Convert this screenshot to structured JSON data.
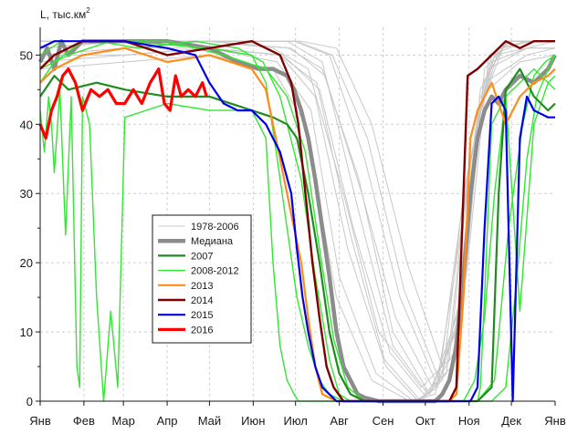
{
  "chart_data": {
    "type": "line",
    "title": "",
    "ylabel_main": "L, тыс.км",
    "ylabel_sup": "2",
    "xlabel": "",
    "ylim": [
      0,
      54
    ],
    "yticks": [
      0,
      10,
      20,
      30,
      40,
      50
    ],
    "xlim": [
      0,
      365
    ],
    "months": [
      "Янв",
      "Фев",
      "Мар",
      "Апр",
      "Май",
      "Июн",
      "Июл",
      "Авг",
      "Сен",
      "Окт",
      "Ноя",
      "Дек",
      "Янв"
    ],
    "month_days": [
      0,
      31,
      59,
      90,
      120,
      151,
      181,
      212,
      243,
      273,
      304,
      334,
      365
    ],
    "grid": true,
    "legend_position": "center-left",
    "colors": {
      "historical": "#c8c8c8",
      "median": "#8c8c8c",
      "y2007": "#1e8c1e",
      "y2008_2012": "#33e633",
      "y2013": "#ff8c1a",
      "y2014": "#7f0000",
      "y2015": "#0000e6",
      "y2016": "#ff0000"
    },
    "legend": [
      {
        "key": "historical",
        "label": "1978-2006"
      },
      {
        "key": "median",
        "label": "Медиана"
      },
      {
        "key": "y2007",
        "label": "2007"
      },
      {
        "key": "y2008_2012",
        "label": "2008-2012"
      },
      {
        "key": "y2013",
        "label": "2013"
      },
      {
        "key": "y2014",
        "label": "2014"
      },
      {
        "key": "y2015",
        "label": "2015"
      },
      {
        "key": "y2016",
        "label": "2016"
      }
    ],
    "historical_series": [
      {
        "x": [
          0,
          60,
          120,
          165,
          190,
          215,
          240,
          270,
          290,
          305,
          320,
          345,
          365
        ],
        "y": [
          52,
          52,
          52,
          51,
          48,
          30,
          10,
          2,
          6,
          35,
          50,
          52,
          52
        ]
      },
      {
        "x": [
          0,
          60,
          120,
          175,
          200,
          225,
          250,
          275,
          295,
          310,
          325,
          345,
          365
        ],
        "y": [
          50,
          51,
          52,
          52,
          49,
          28,
          8,
          1,
          10,
          40,
          51,
          52,
          52
        ]
      },
      {
        "x": [
          0,
          60,
          120,
          170,
          195,
          218,
          245,
          268,
          285,
          300,
          318,
          345,
          365
        ],
        "y": [
          52,
          52,
          51,
          50,
          44,
          22,
          5,
          0,
          3,
          30,
          48,
          51,
          52
        ]
      },
      {
        "x": [
          0,
          60,
          120,
          180,
          205,
          230,
          255,
          280,
          298,
          312,
          330,
          350,
          365
        ],
        "y": [
          51,
          52,
          52,
          52,
          50,
          35,
          15,
          3,
          12,
          45,
          52,
          52,
          52
        ]
      },
      {
        "x": [
          0,
          60,
          120,
          168,
          192,
          212,
          238,
          265,
          282,
          297,
          315,
          345,
          365
        ],
        "y": [
          49,
          50,
          51,
          49,
          42,
          18,
          4,
          0,
          2,
          25,
          46,
          50,
          51
        ]
      },
      {
        "x": [
          0,
          60,
          120,
          178,
          202,
          228,
          252,
          278,
          300,
          315,
          332,
          350,
          365
        ],
        "y": [
          52,
          52,
          52,
          51,
          47,
          30,
          12,
          2,
          15,
          48,
          52,
          52,
          52
        ]
      },
      {
        "x": [
          0,
          60,
          120,
          172,
          198,
          222,
          248,
          272,
          292,
          308,
          322,
          345,
          365
        ],
        "y": [
          50,
          51,
          51,
          50,
          45,
          25,
          7,
          1,
          5,
          38,
          50,
          51,
          51
        ]
      },
      {
        "x": [
          0,
          60,
          120,
          185,
          210,
          235,
          260,
          285,
          302,
          318,
          335,
          352,
          365
        ],
        "y": [
          52,
          52,
          52,
          52,
          51,
          40,
          20,
          5,
          18,
          50,
          52,
          52,
          52
        ]
      },
      {
        "x": [
          0,
          60,
          120,
          165,
          188,
          210,
          235,
          262,
          280,
          295,
          312,
          340,
          365
        ],
        "y": [
          48,
          49,
          50,
          48,
          40,
          15,
          3,
          0,
          1,
          20,
          44,
          49,
          50
        ]
      },
      {
        "x": [
          0,
          60,
          120,
          176,
          200,
          226,
          250,
          276,
          296,
          311,
          328,
          348,
          365
        ],
        "y": [
          51,
          52,
          52,
          51,
          48,
          32,
          10,
          1,
          8,
          42,
          51,
          52,
          52
        ]
      },
      {
        "x": [
          0,
          60,
          120,
          170,
          196,
          220,
          244,
          270,
          288,
          303,
          320,
          345,
          365
        ],
        "y": [
          50,
          50,
          51,
          50,
          46,
          24,
          6,
          0,
          4,
          33,
          49,
          51,
          51
        ]
      },
      {
        "x": [
          0,
          60,
          120,
          182,
          207,
          232,
          258,
          283,
          299,
          314,
          331,
          350,
          365
        ],
        "y": [
          52,
          52,
          52,
          52,
          50,
          38,
          16,
          3,
          14,
          46,
          52,
          52,
          52
        ]
      }
    ],
    "series": [
      {
        "key": "median",
        "width": 4.5,
        "x": [
          0,
          5,
          10,
          15,
          20,
          30,
          45,
          60,
          90,
          120,
          140,
          155,
          165,
          175,
          180,
          185,
          190,
          195,
          200,
          205,
          210,
          215,
          220,
          225,
          230,
          240,
          250,
          260,
          270,
          280,
          285,
          290,
          295,
          300,
          305,
          310,
          315,
          320,
          325,
          330,
          340,
          350,
          360,
          365
        ],
        "y": [
          49,
          51,
          48,
          52,
          50,
          52,
          52,
          52,
          52,
          51,
          49,
          48,
          48,
          47,
          45,
          42,
          38,
          32,
          25,
          18,
          10,
          5,
          3,
          1,
          0.5,
          0,
          0,
          0,
          0,
          0,
          1,
          3,
          8,
          18,
          30,
          38,
          42,
          44,
          43,
          45,
          47,
          46,
          48,
          50
        ]
      },
      {
        "key": "y2008_2012",
        "width": 1.4,
        "x": [
          0,
          3,
          6,
          8,
          10,
          14,
          18,
          22,
          26,
          28,
          30,
          35,
          40,
          45,
          50,
          55,
          60,
          90,
          120,
          150,
          160,
          165,
          170,
          175,
          180,
          183,
          186,
          190,
          195,
          200,
          210,
          240,
          270,
          290,
          300,
          305,
          310,
          312,
          315,
          320,
          330,
          340,
          350,
          360,
          365
        ],
        "y": [
          42,
          36,
          44,
          40,
          33,
          45,
          24,
          44,
          5,
          2,
          44,
          40,
          15,
          0,
          13,
          2,
          41,
          43,
          42,
          42,
          38,
          20,
          8,
          3,
          1,
          0,
          0,
          0,
          0,
          0,
          0,
          0,
          0,
          0,
          0,
          0,
          0,
          2,
          15,
          40,
          44,
          13,
          40,
          46,
          45
        ]
      },
      {
        "key": "y2008_2012",
        "width": 1.4,
        "x": [
          0,
          10,
          30,
          60,
          120,
          150,
          160,
          168,
          175,
          182,
          190,
          198,
          205,
          215,
          240,
          270,
          300,
          308,
          315,
          322,
          330,
          340,
          350,
          360,
          365
        ],
        "y": [
          46,
          49,
          52,
          52,
          51,
          50,
          46,
          35,
          25,
          15,
          8,
          3,
          1,
          0,
          0,
          0,
          0,
          3,
          12,
          30,
          44,
          46,
          48,
          46,
          47
        ]
      },
      {
        "key": "y2008_2012",
        "width": 1.4,
        "x": [
          0,
          15,
          40,
          70,
          110,
          140,
          158,
          170,
          185,
          195,
          205,
          212,
          220,
          240,
          270,
          300,
          320,
          330,
          338,
          345,
          352,
          360,
          365
        ],
        "y": [
          50,
          52,
          52,
          51,
          52,
          51,
          49,
          44,
          32,
          18,
          6,
          1,
          0,
          0,
          0,
          0,
          0,
          2,
          18,
          35,
          44,
          48,
          50
        ]
      },
      {
        "key": "y2008_2012",
        "width": 1.4,
        "x": [
          0,
          20,
          50,
          90,
          130,
          160,
          175,
          188,
          198,
          208,
          218,
          230,
          260,
          290,
          310,
          322,
          332,
          342,
          350,
          358,
          365
        ],
        "y": [
          48,
          50,
          52,
          52,
          50,
          48,
          44,
          36,
          22,
          9,
          2,
          0,
          0,
          0,
          0,
          3,
          25,
          40,
          47,
          49,
          50
        ]
      },
      {
        "key": "y2007",
        "width": 2.2,
        "x": [
          0,
          10,
          20,
          40,
          60,
          90,
          120,
          150,
          165,
          175,
          182,
          190,
          198,
          205,
          212,
          220,
          230,
          250,
          280,
          300,
          310,
          320,
          325,
          330,
          340,
          350,
          360,
          365
        ],
        "y": [
          44,
          47,
          45,
          46,
          45,
          44,
          44,
          42,
          41,
          40,
          38,
          30,
          20,
          10,
          4,
          1,
          0,
          0,
          0,
          0,
          0,
          2,
          30,
          45,
          48,
          44,
          42,
          43
        ]
      },
      {
        "key": "y2013",
        "width": 2.2,
        "x": [
          0,
          10,
          30,
          60,
          90,
          120,
          150,
          160,
          165,
          170,
          175,
          180,
          185,
          190,
          195,
          200,
          210,
          240,
          270,
          290,
          295,
          300,
          305,
          310,
          320,
          330,
          340,
          350,
          360,
          365
        ],
        "y": [
          46,
          48,
          50,
          51,
          49,
          50,
          48,
          45,
          40,
          35,
          30,
          25,
          20,
          12,
          5,
          1,
          0,
          0,
          0,
          0,
          1,
          15,
          38,
          42,
          46,
          40,
          44,
          46,
          47,
          48
        ]
      },
      {
        "key": "y2014",
        "width": 2.4,
        "x": [
          0,
          10,
          30,
          60,
          90,
          120,
          150,
          170,
          178,
          183,
          188,
          193,
          198,
          203,
          208,
          215,
          225,
          240,
          260,
          280,
          290,
          295,
          300,
          303,
          310,
          320,
          330,
          340,
          350,
          360,
          365
        ],
        "y": [
          48,
          50,
          52,
          52,
          50,
          51,
          52,
          50,
          46,
          40,
          30,
          20,
          12,
          5,
          2,
          0,
          0,
          0,
          0,
          0,
          0,
          2,
          30,
          47,
          48,
          50,
          52,
          51,
          52,
          52,
          52
        ]
      },
      {
        "key": "y2015",
        "width": 2.2,
        "x": [
          0,
          10,
          30,
          60,
          90,
          110,
          120,
          130,
          140,
          150,
          160,
          170,
          178,
          182,
          186,
          190,
          195,
          200,
          205,
          210,
          220,
          240,
          270,
          300,
          305,
          310,
          315,
          320,
          325,
          330,
          335,
          340,
          345,
          350,
          360,
          365
        ],
        "y": [
          51,
          52,
          52,
          52,
          51,
          50,
          46,
          43,
          42,
          42,
          40,
          36,
          30,
          22,
          15,
          10,
          5,
          2,
          1,
          0,
          0,
          0,
          0,
          0,
          0,
          2,
          25,
          43,
          44,
          42,
          0,
          38,
          44,
          42,
          41,
          41
        ]
      },
      {
        "key": "y2016",
        "width": 3.2,
        "x": [
          0,
          4,
          8,
          12,
          16,
          20,
          25,
          30,
          36,
          42,
          48,
          54,
          60,
          66,
          72,
          78,
          84,
          88,
          92,
          96,
          100,
          105,
          110,
          115,
          118
        ],
        "y": [
          40,
          38,
          42,
          44,
          47,
          48,
          46,
          42,
          45,
          44,
          45,
          43,
          43,
          45,
          43,
          46,
          48,
          43,
          42,
          47,
          44,
          45,
          44,
          46,
          44
        ]
      }
    ]
  }
}
